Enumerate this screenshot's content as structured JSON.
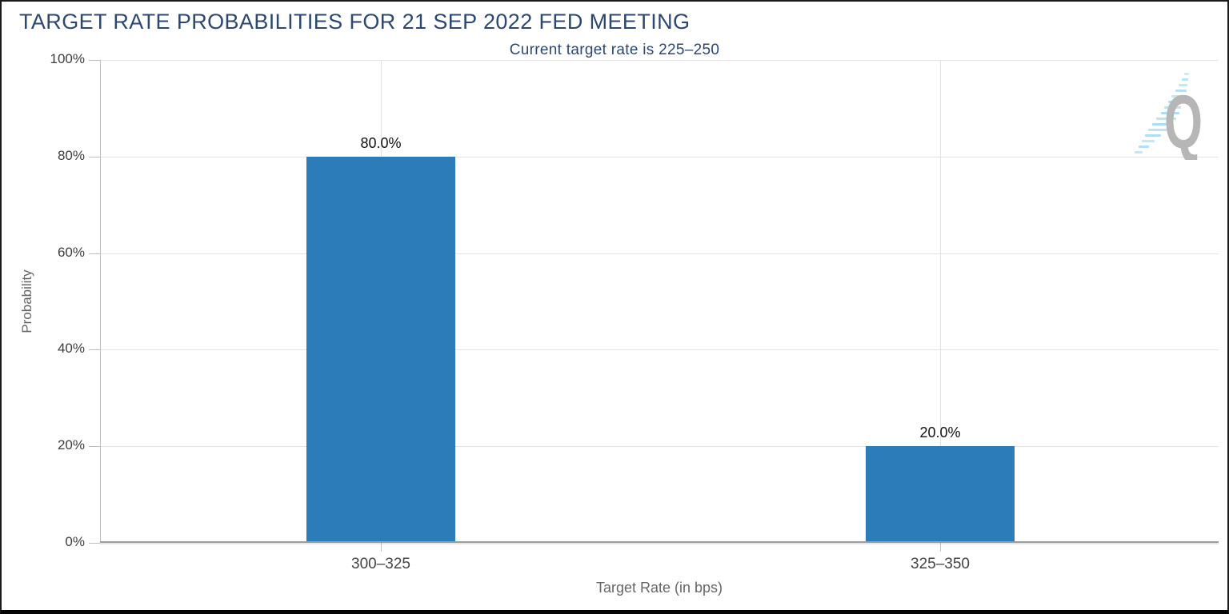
{
  "chart_data": {
    "type": "bar",
    "title": "TARGET RATE PROBABILITIES FOR 21 SEP 2022 FED MEETING",
    "subtitle": "Current target rate is 225–250",
    "categories": [
      "300–325",
      "325–350"
    ],
    "values": [
      80.0,
      20.0
    ],
    "value_labels": [
      "80.0%",
      "20.0%"
    ],
    "xlabel": "Target Rate (in bps)",
    "ylabel": "Probability",
    "yticks": [
      0,
      20,
      40,
      60,
      80,
      100
    ],
    "ytick_labels": [
      "0%",
      "20%",
      "40%",
      "60%",
      "80%",
      "100%"
    ],
    "ylim": [
      0,
      100
    ],
    "grid": true,
    "legend_position": "none",
    "bar_color": "#2B7CB8",
    "title_color": "#2C4770"
  },
  "logo": {
    "letter": "Q"
  }
}
